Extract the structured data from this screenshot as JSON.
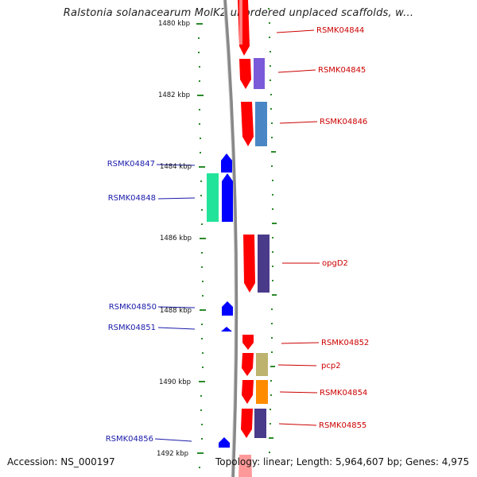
{
  "title": "Ralstonia solanacearum MolK2 unordered unplaced scaffolds, w...",
  "accession_text": "Accession: NS_000197",
  "topology_text": "Topology: linear; Length: 5,964,607 bp; Genes: 4,975",
  "colors": {
    "forward_strand": "#ff0000",
    "reverse_strand": "#0000ff",
    "label_right": "#cc0000",
    "label_left": "#1a1aaa",
    "ruler": "#2a8a2a",
    "backbone": "#888888"
  },
  "scale_ticks": [
    {
      "label": "1480 kbp"
    },
    {
      "label": "1482 kbp"
    },
    {
      "label": "1484 kbp"
    },
    {
      "label": "1486 kbp"
    },
    {
      "label": "1488 kbp"
    },
    {
      "label": "1490 kbp"
    },
    {
      "label": "1492 kbp"
    }
  ],
  "right_labels": [
    {
      "text": "RSMK04844"
    },
    {
      "text": "RSMK04845"
    },
    {
      "text": "RSMK04846"
    },
    {
      "text": "opgD2"
    },
    {
      "text": "RSMK04852"
    },
    {
      "text": "pcp2"
    },
    {
      "text": "RSMK04854"
    },
    {
      "text": "RSMK04855"
    }
  ],
  "left_labels": [
    {
      "text": "RSMK04847"
    },
    {
      "text": "RSMK04848"
    },
    {
      "text": "RSMK04850"
    },
    {
      "text": "RSMK04851"
    },
    {
      "text": "RSMK04856"
    }
  ]
}
